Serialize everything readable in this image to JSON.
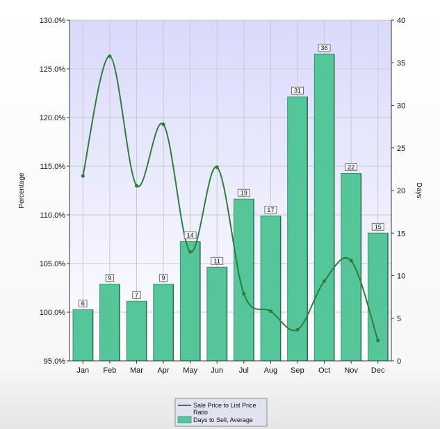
{
  "chart_data": {
    "type": "bar",
    "title": "",
    "categories": [
      "Jan",
      "Feb",
      "Mar",
      "Apr",
      "May",
      "Jun",
      "Jul",
      "Aug",
      "Sep",
      "Oct",
      "Nov",
      "Dec"
    ],
    "ylabel_left": "Percentage",
    "ylabel_right": "Days",
    "y_left_lim": [
      95.0,
      130.0
    ],
    "y_left_ticks": [
      "95.0%",
      "100.0%",
      "105.0%",
      "110.0%",
      "115.0%",
      "120.0%",
      "125.0%",
      "130.0%"
    ],
    "y_right_lim": [
      0,
      40
    ],
    "y_right_ticks": [
      "0",
      "5",
      "10",
      "15",
      "20",
      "25",
      "30",
      "35",
      "40"
    ],
    "grid": true,
    "legend_position": "bottom-center",
    "series": [
      {
        "name": "Days to Sell, Average",
        "type": "bar",
        "axis": "right",
        "color": "#54c69a",
        "values": [
          6,
          9,
          7,
          9,
          14,
          11,
          19,
          17,
          31,
          36,
          22,
          15
        ]
      },
      {
        "name": "Sale Price to List Price Ratio",
        "type": "line",
        "axis": "left",
        "color": "#2e7d3e",
        "values": [
          114.0,
          126.3,
          113.0,
          119.3,
          106.2,
          114.9,
          101.9,
          100.1,
          98.2,
          103.2,
          105.3,
          97.1
        ]
      }
    ]
  }
}
